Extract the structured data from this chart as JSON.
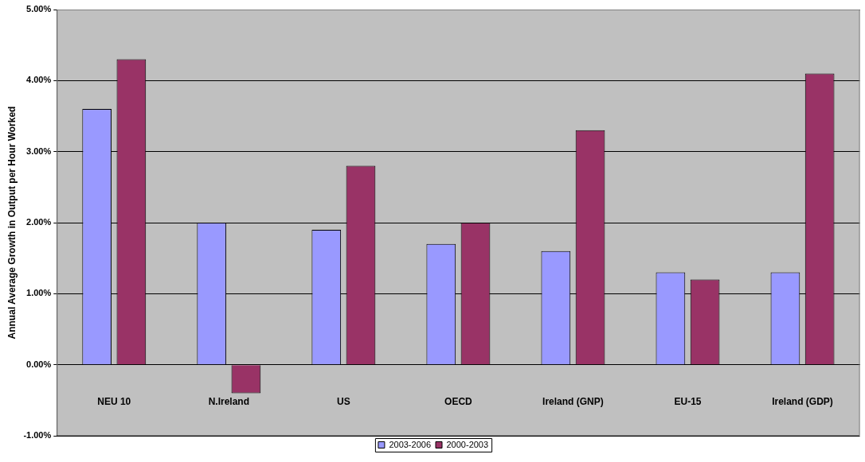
{
  "chart_data": {
    "type": "bar",
    "ylabel": "Annual Average Growth in Output per Hour Worked",
    "categories": [
      "NEU 10",
      "N.Ireland",
      "US",
      "OECD",
      "Ireland (GNP)",
      "EU-15",
      "Ireland (GDP)"
    ],
    "series": [
      {
        "name": "2003-2006",
        "color": "#9999ff",
        "values": [
          3.6,
          2.0,
          1.9,
          1.7,
          1.6,
          1.3,
          1.3
        ]
      },
      {
        "name": "2000-2003",
        "color": "#993366",
        "values": [
          4.3,
          -0.4,
          2.8,
          2.0,
          3.3,
          1.2,
          4.1
        ]
      }
    ],
    "ylim": [
      -1,
      5
    ],
    "yticks": [
      {
        "value": -1,
        "label": "-1.00%"
      },
      {
        "value": 0,
        "label": "0.00%"
      },
      {
        "value": 1,
        "label": "1.00%"
      },
      {
        "value": 2,
        "label": "2.00%"
      },
      {
        "value": 3,
        "label": "3.00%"
      },
      {
        "value": 4,
        "label": "4.00%"
      },
      {
        "value": 5,
        "label": "5.00%"
      }
    ],
    "grid": "y",
    "legend": "bottom"
  }
}
